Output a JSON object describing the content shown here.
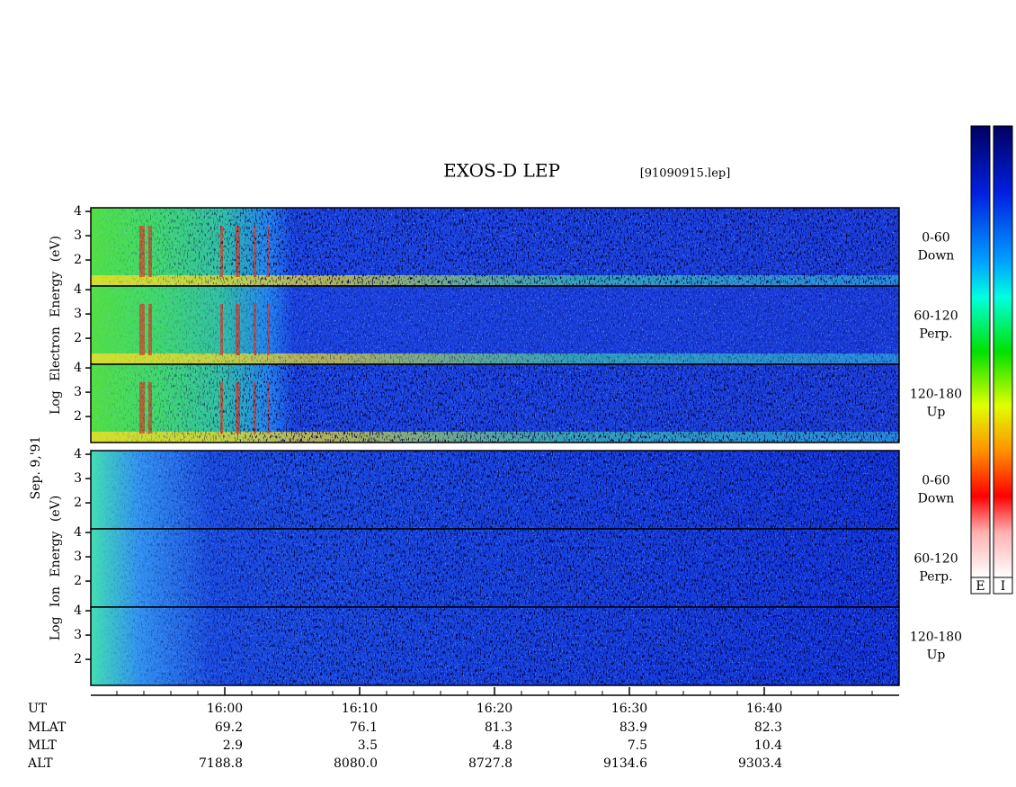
{
  "title": "EXOS-D LEP",
  "file": "[91090915.lep]",
  "date": "Sep. 9,'91",
  "ylim": [
    0.93,
    4.15
  ],
  "yticks": [
    2,
    3,
    4
  ],
  "groups": [
    {
      "ylabel": "Log Electron Energy (eV)",
      "panels": [
        {
          "label": [
            "0-60",
            "Down"
          ]
        },
        {
          "label": [
            "60-120",
            "Perp."
          ]
        },
        {
          "label": [
            "120-180",
            "Up"
          ]
        }
      ]
    },
    {
      "ylabel": "Log Ion Energy (eV)",
      "panels": [
        {
          "label": [
            "0-60",
            "Down"
          ]
        },
        {
          "label": [
            "60-120",
            "Perp."
          ]
        },
        {
          "label": [
            "120-180",
            "Up"
          ]
        }
      ]
    }
  ],
  "time_table": {
    "rows": [
      {
        "label": "UT",
        "values": [
          "16:00",
          "16:10",
          "16:20",
          "16:30",
          "16:40"
        ]
      },
      {
        "label": "MLAT",
        "values": [
          "69.2",
          "76.1",
          "81.3",
          "83.9",
          "82.3"
        ]
      },
      {
        "label": "MLT",
        "values": [
          "2.9",
          "3.5",
          "4.8",
          "7.5",
          "10.4"
        ]
      },
      {
        "label": "ALT",
        "values": [
          "7188.8",
          "8080.0",
          "8727.8",
          "9134.6",
          "9303.4"
        ]
      }
    ]
  },
  "colorbars": [
    "E",
    "I"
  ]
}
